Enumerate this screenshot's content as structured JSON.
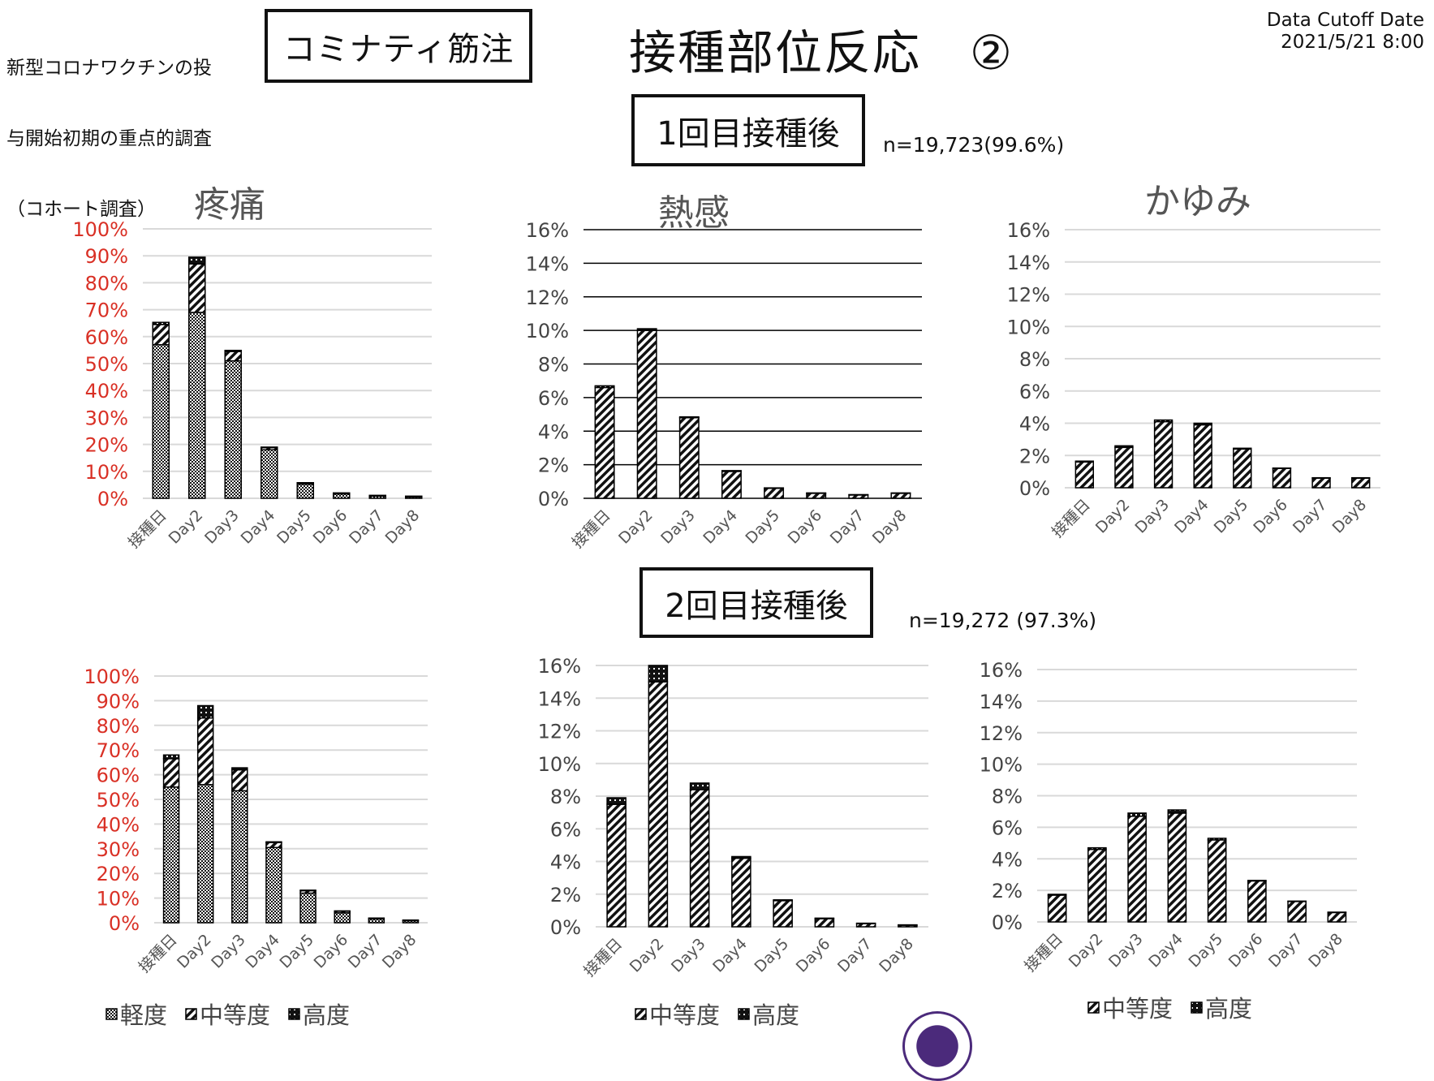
{
  "header": {
    "survey_lines": [
      "新型コロナワクチンの投",
      "与開始初期の重点的調査",
      "（コホート調査）"
    ],
    "vaccine_label": "コミナティ筋注",
    "title": "接種部位反応　②",
    "cutoff_label": "Data Cutoff Date",
    "cutoff_value": "2021/5/21 8:00"
  },
  "dose1": {
    "label": "1回目接種後",
    "n": "n=19,723(99.6%)"
  },
  "dose2": {
    "label": "2回目接種後",
    "n": "n=19,272 (97.3%)"
  },
  "colors": {
    "pain_axis": "#d93025",
    "axis": "#444444",
    "grid": "#d9d9d9",
    "grid_dark": "#000000",
    "logo": "#4b2a7b"
  },
  "legends": {
    "pain": [
      {
        "name": "軽度",
        "pattern": "checker"
      },
      {
        "name": "中等度",
        "pattern": "hatch"
      },
      {
        "name": "高度",
        "pattern": "dots"
      }
    ],
    "other": [
      {
        "name": "中等度",
        "pattern": "hatch"
      },
      {
        "name": "高度",
        "pattern": "dots"
      }
    ]
  },
  "chart_data": [
    {
      "type": "bar",
      "stacked": true,
      "title": "疼痛",
      "dose": "1回目接種後",
      "categories": [
        "接種日",
        "Day2",
        "Day3",
        "Day4",
        "Day5",
        "Day6",
        "Day7",
        "Day8"
      ],
      "ylim": [
        0,
        100
      ],
      "yticks": [
        "0%",
        "10%",
        "20%",
        "30%",
        "40%",
        "50%",
        "60%",
        "70%",
        "80%",
        "90%",
        "100%"
      ],
      "ytick_color": "#d93025",
      "grid": "light",
      "series": [
        {
          "name": "軽度",
          "pattern": "checker",
          "values": [
            57,
            69,
            51,
            18,
            5.2,
            1.6,
            0.8,
            0.5
          ]
        },
        {
          "name": "中等度",
          "pattern": "hatch",
          "values": [
            7.5,
            18,
            3.5,
            0.8,
            0.5,
            0.3,
            0.2,
            0.2
          ]
        },
        {
          "name": "高度",
          "pattern": "dots",
          "values": [
            0.8,
            2.5,
            0.4,
            0.2,
            0.1,
            0.1,
            0.1,
            0.1
          ]
        }
      ]
    },
    {
      "type": "bar",
      "stacked": true,
      "title": "熱感",
      "dose": "1回目接種後",
      "categories": [
        "接種日",
        "Day2",
        "Day3",
        "Day4",
        "Day5",
        "Day6",
        "Day7",
        "Day8"
      ],
      "ylim": [
        0,
        16
      ],
      "yticks": [
        "0%",
        "2%",
        "4%",
        "6%",
        "8%",
        "10%",
        "12%",
        "14%",
        "16%"
      ],
      "ytick_color": "#444444",
      "grid": "dark",
      "series": [
        {
          "name": "中等度",
          "pattern": "hatch",
          "values": [
            6.6,
            10.0,
            4.8,
            1.6,
            0.6,
            0.3,
            0.2,
            0.3
          ]
        },
        {
          "name": "高度",
          "pattern": "dots",
          "values": [
            0.1,
            0.1,
            0.05,
            0.05,
            0.02,
            0.02,
            0.02,
            0.02
          ]
        }
      ]
    },
    {
      "type": "bar",
      "stacked": true,
      "title": "かゆみ",
      "dose": "1回目接種後",
      "categories": [
        "接種日",
        "Day2",
        "Day3",
        "Day4",
        "Day5",
        "Day6",
        "Day7",
        "Day8"
      ],
      "ylim": [
        0,
        16
      ],
      "yticks": [
        "0%",
        "2%",
        "4%",
        "6%",
        "8%",
        "10%",
        "12%",
        "14%",
        "16%"
      ],
      "ytick_color": "#444444",
      "grid": "light",
      "series": [
        {
          "name": "中等度",
          "pattern": "hatch",
          "values": [
            1.6,
            2.5,
            4.1,
            3.9,
            2.4,
            1.2,
            0.6,
            0.6
          ]
        },
        {
          "name": "高度",
          "pattern": "dots",
          "values": [
            0.05,
            0.1,
            0.1,
            0.1,
            0.05,
            0.02,
            0.02,
            0.02
          ]
        }
      ]
    },
    {
      "type": "bar",
      "stacked": true,
      "title": "",
      "dose": "2回目接種後",
      "categories": [
        "接種日",
        "Day2",
        "Day3",
        "Day4",
        "Day5",
        "Day6",
        "Day7",
        "Day8"
      ],
      "ylim": [
        0,
        100
      ],
      "yticks": [
        "0%",
        "10%",
        "20%",
        "30%",
        "40%",
        "50%",
        "60%",
        "70%",
        "80%",
        "90%",
        "100%"
      ],
      "ytick_color": "#d93025",
      "grid": "light",
      "series": [
        {
          "name": "軽度",
          "pattern": "checker",
          "values": [
            55,
            56,
            53.5,
            30.5,
            12,
            4,
            1.5,
            0.8
          ]
        },
        {
          "name": "中等度",
          "pattern": "hatch",
          "values": [
            11.5,
            27,
            8.5,
            2,
            1,
            0.7,
            0.3,
            0.2
          ]
        },
        {
          "name": "高度",
          "pattern": "dots",
          "values": [
            1.5,
            5,
            0.8,
            0.3,
            0.2,
            0.1,
            0.1,
            0.1
          ]
        }
      ]
    },
    {
      "type": "bar",
      "stacked": true,
      "title": "",
      "dose": "2回目接種後",
      "categories": [
        "接種日",
        "Day2",
        "Day3",
        "Day4",
        "Day5",
        "Day6",
        "Day7",
        "Day8"
      ],
      "ylim": [
        0,
        16
      ],
      "yticks": [
        "0%",
        "2%",
        "4%",
        "6%",
        "8%",
        "10%",
        "12%",
        "14%",
        "16%"
      ],
      "ytick_color": "#444444",
      "grid": "light",
      "series": [
        {
          "name": "中等度",
          "pattern": "hatch",
          "values": [
            7.5,
            15.0,
            8.4,
            4.2,
            1.6,
            0.5,
            0.2,
            0.1
          ]
        },
        {
          "name": "高度",
          "pattern": "dots",
          "values": [
            0.4,
            1.0,
            0.4,
            0.1,
            0.05,
            0.03,
            0.02,
            0.02
          ]
        }
      ]
    },
    {
      "type": "bar",
      "stacked": true,
      "title": "",
      "dose": "2回目接種後",
      "categories": [
        "接種日",
        "Day2",
        "Day3",
        "Day4",
        "Day5",
        "Day6",
        "Day7",
        "Day8"
      ],
      "ylim": [
        0,
        16
      ],
      "yticks": [
        "0%",
        "2%",
        "4%",
        "6%",
        "8%",
        "10%",
        "12%",
        "14%",
        "16%"
      ],
      "ytick_color": "#444444",
      "grid": "light",
      "series": [
        {
          "name": "中等度",
          "pattern": "hatch",
          "values": [
            1.7,
            4.6,
            6.7,
            6.9,
            5.2,
            2.6,
            1.3,
            0.6
          ]
        },
        {
          "name": "高度",
          "pattern": "dots",
          "values": [
            0.05,
            0.1,
            0.2,
            0.2,
            0.1,
            0.03,
            0.02,
            0.02
          ]
        }
      ]
    }
  ]
}
